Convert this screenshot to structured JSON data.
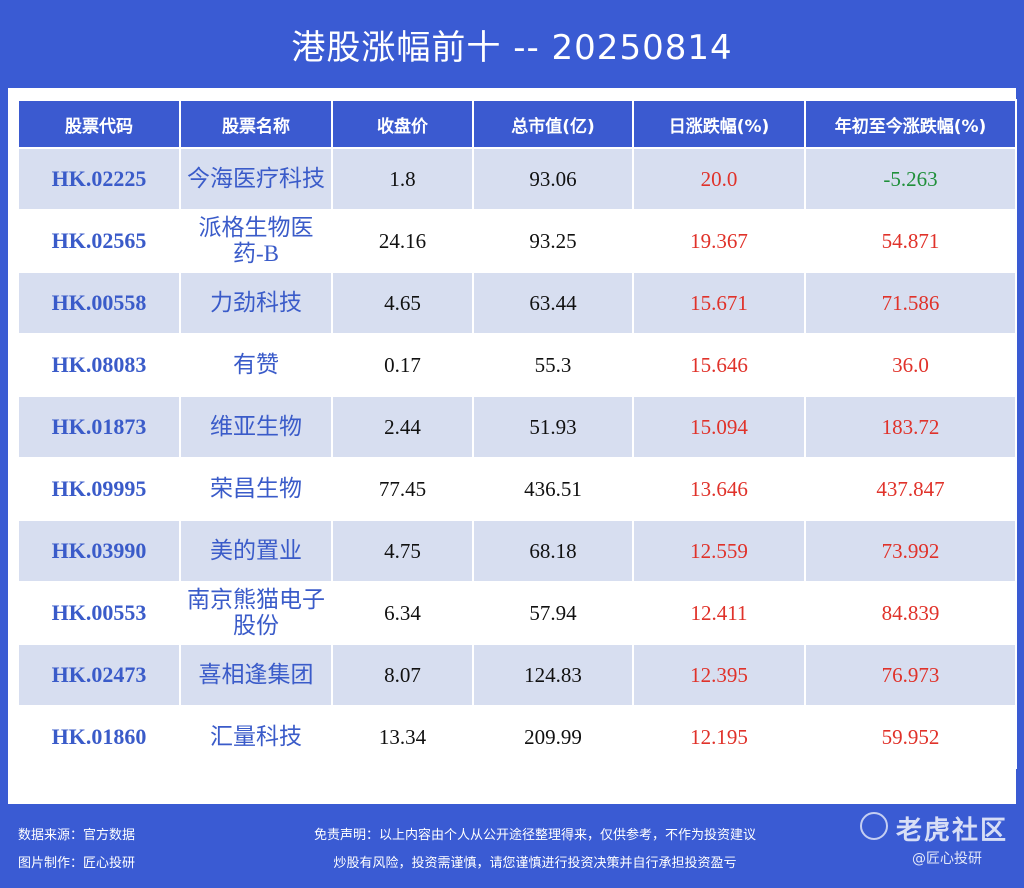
{
  "title": "港股涨幅前十 -- 20250814",
  "table": {
    "headers": [
      "股票代码",
      "股票名称",
      "收盘价",
      "总市值(亿)",
      "日涨跌幅(%)",
      "年初至今涨跌幅(%)"
    ],
    "rows": [
      {
        "code": "HK.02225",
        "name": "今海医疗科技",
        "close": "1.8",
        "cap": "93.06",
        "day": "20.0",
        "ytd": "-5.263"
      },
      {
        "code": "HK.02565",
        "name": "派格生物医药-B",
        "close": "24.16",
        "cap": "93.25",
        "day": "19.367",
        "ytd": "54.871"
      },
      {
        "code": "HK.00558",
        "name": "力劲科技",
        "close": "4.65",
        "cap": "63.44",
        "day": "15.671",
        "ytd": "71.586"
      },
      {
        "code": "HK.08083",
        "name": "有赞",
        "close": "0.17",
        "cap": "55.3",
        "day": "15.646",
        "ytd": "36.0"
      },
      {
        "code": "HK.01873",
        "name": "维亚生物",
        "close": "2.44",
        "cap": "51.93",
        "day": "15.094",
        "ytd": "183.72"
      },
      {
        "code": "HK.09995",
        "name": "荣昌生物",
        "close": "77.45",
        "cap": "436.51",
        "day": "13.646",
        "ytd": "437.847"
      },
      {
        "code": "HK.03990",
        "name": "美的置业",
        "close": "4.75",
        "cap": "68.18",
        "day": "12.559",
        "ytd": "73.992"
      },
      {
        "code": "HK.00553",
        "name": "南京熊猫电子股份",
        "close": "6.34",
        "cap": "57.94",
        "day": "12.411",
        "ytd": "84.839"
      },
      {
        "code": "HK.02473",
        "name": "喜相逢集团",
        "close": "8.07",
        "cap": "124.83",
        "day": "12.395",
        "ytd": "76.973"
      },
      {
        "code": "HK.01860",
        "name": "汇量科技",
        "close": "13.34",
        "cap": "209.99",
        "day": "12.195",
        "ytd": "59.952"
      }
    ]
  },
  "footer": {
    "source": "数据来源：官方数据",
    "maker": "图片制作：匠心投研",
    "disclaimer1": "免责声明：以上内容由个人从公开途径整理得来，仅供参考，不作为投资建议",
    "disclaimer2": "炒股有风险，投资需谨慎，请您谨慎进行投资决策并自行承担投资盈亏"
  },
  "watermark": {
    "logo_icon": "tiger-community-logo-icon",
    "brand": "老虎社区",
    "handle": "@匠心投研"
  },
  "colors": {
    "background": "#3a5bd3",
    "header": "#3b5ad0",
    "row_odd": "#d7def0",
    "link_blue": "#3a5bc9",
    "up_red": "#e0322a",
    "down_green": "#1f8f3a"
  }
}
